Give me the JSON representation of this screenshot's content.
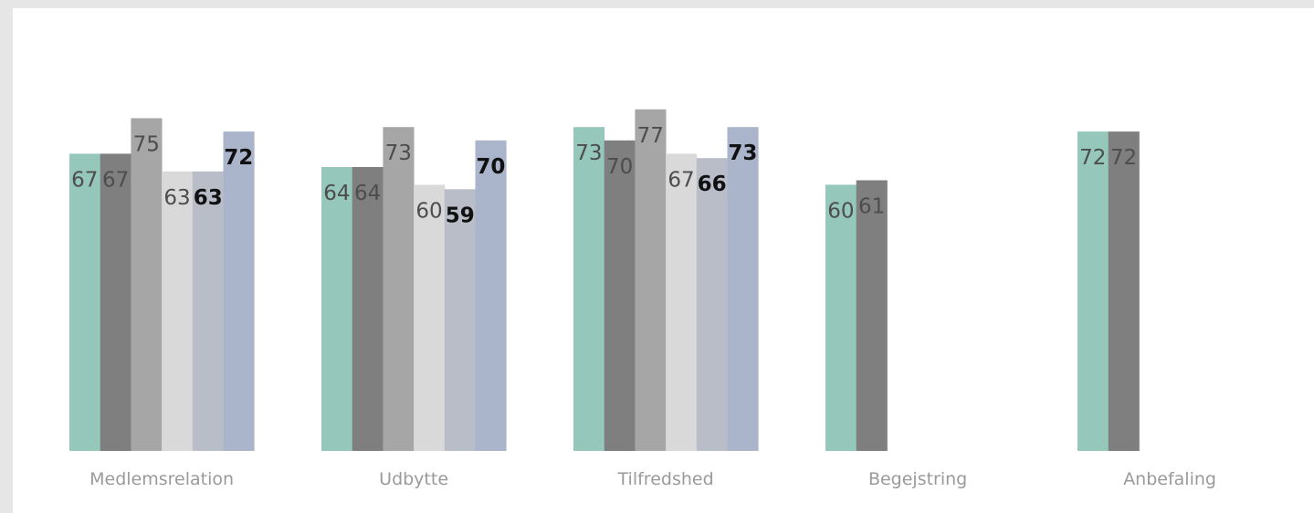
{
  "chart_data": {
    "type": "bar",
    "title": "",
    "xlabel": "",
    "ylabel": "",
    "ylim": [
      0,
      100
    ],
    "grid": false,
    "legend": "none",
    "categories": [
      "Medlemsrelation",
      "Udbytte",
      "Tilfredshed",
      "Begejstring",
      "Anbefaling"
    ],
    "series": [
      {
        "color": "#95c7ba",
        "label_color": "#4d4d4d",
        "label_bold": false,
        "values": [
          67,
          64,
          73,
          60,
          72
        ]
      },
      {
        "color": "#7f7f7f",
        "label_color": "#4d4d4d",
        "label_bold": false,
        "values": [
          67,
          64,
          70,
          61,
          72
        ]
      },
      {
        "color": "#a6a6a6",
        "label_color": "#4d4d4d",
        "label_bold": false,
        "values": [
          75,
          73,
          77,
          null,
          null
        ]
      },
      {
        "color": "#d9d9d9",
        "label_color": "#4d4d4d",
        "label_bold": false,
        "values": [
          63,
          60,
          67,
          null,
          null
        ]
      },
      {
        "color": "#b9bdc8",
        "label_color": "#111111",
        "label_bold": true,
        "values": [
          63,
          59,
          66,
          null,
          null
        ]
      },
      {
        "color": "#aab5cb",
        "label_color": "#111111",
        "label_bold": true,
        "values": [
          72,
          70,
          73,
          null,
          null
        ]
      }
    ]
  }
}
